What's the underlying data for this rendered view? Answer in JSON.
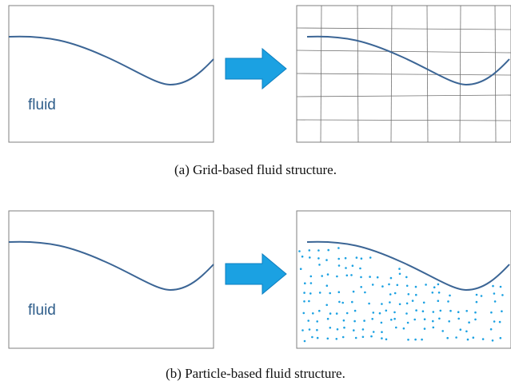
{
  "colors": {
    "frame": "#7f7f7f",
    "curve": "#3b6595",
    "label": "#2e5d8a",
    "arrow_fill": "#1ba1e2",
    "arrow_stroke": "#0e7fc0",
    "grid_line": "#707070",
    "particle": "#1ba1e2"
  },
  "row_a": {
    "left_panel_label": "fluid",
    "right_panel_content": "grid",
    "caption": "(a) Grid-based fluid structure."
  },
  "row_b": {
    "left_panel_label": "fluid",
    "right_panel_content": "particles",
    "caption": "(b) Particle-based fluid structure."
  },
  "icons": [
    "right-arrow-icon"
  ]
}
